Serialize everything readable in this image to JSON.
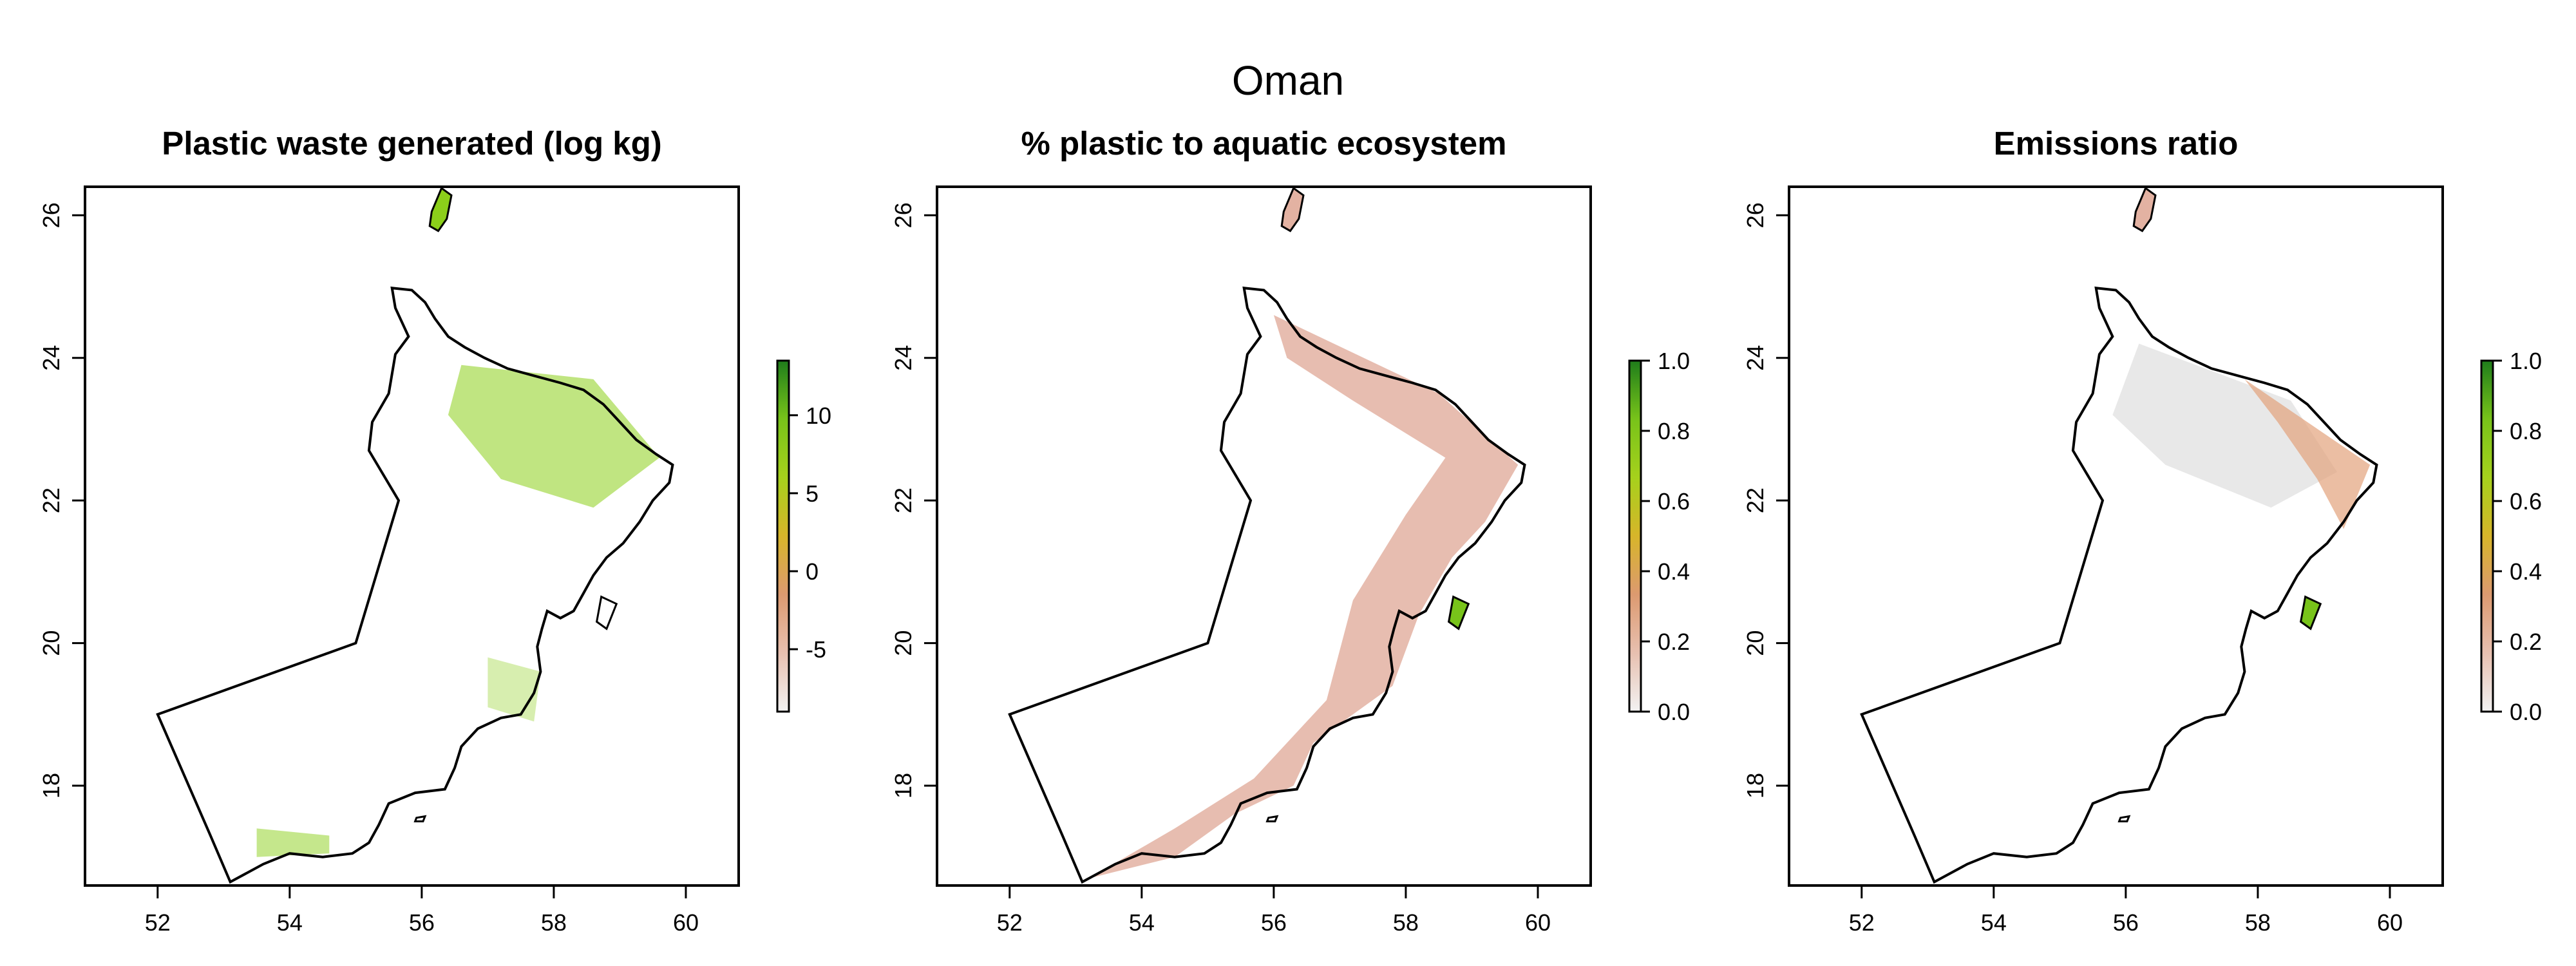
{
  "figure": {
    "title": "Oman"
  },
  "panels": [
    {
      "title": "Plastic waste generated (log kg)",
      "legend": {
        "ticks": [
          "-5",
          "0",
          "5",
          "10"
        ],
        "range": [
          -9,
          13.5
        ]
      },
      "fill": "waste"
    },
    {
      "title": "% plastic to aquatic ecosystem",
      "legend": {
        "ticks": [
          "0.0",
          "0.2",
          "0.4",
          "0.6",
          "0.8",
          "1.0"
        ],
        "range": [
          0,
          1
        ]
      },
      "fill": "aquatic"
    },
    {
      "title": "Emissions ratio",
      "legend": {
        "ticks": [
          "0.0",
          "0.2",
          "0.4",
          "0.6",
          "0.8",
          "1.0"
        ],
        "range": [
          0,
          1
        ]
      },
      "fill": "emissions"
    }
  ],
  "axes": {
    "x_ticks": [
      "52",
      "54",
      "56",
      "58",
      "60"
    ],
    "y_ticks": [
      "18",
      "20",
      "22",
      "24",
      "26"
    ],
    "xlim": [
      50.9,
      60.8
    ],
    "ylim": [
      16.6,
      26.4
    ]
  },
  "colors": {
    "border": "#000000",
    "ramp": [
      "#f2f2f2",
      "#e8c0b0",
      "#dc9a70",
      "#d7b52a",
      "#a6d11c",
      "#78c31a",
      "#1f7d1b"
    ],
    "waste_fill": "#8ccf1a",
    "aquatic_fill": "#e3b2a2",
    "emissions_fill": "#e6e6e6",
    "emissions_coast": "#e2a37c"
  }
}
